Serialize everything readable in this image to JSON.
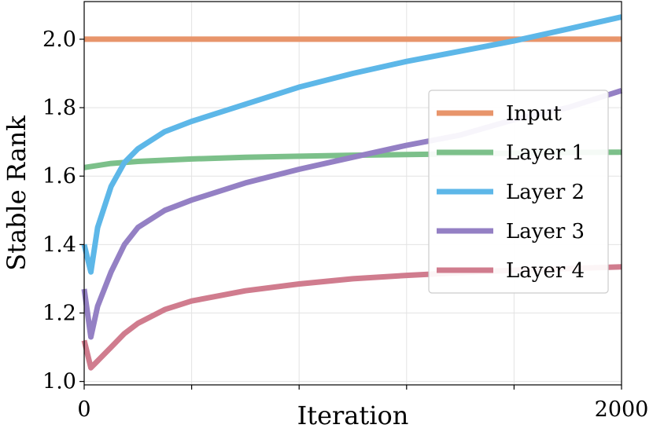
{
  "chart_data": {
    "type": "line",
    "title": "",
    "xlabel": "Iteration",
    "ylabel": "Stable Rank",
    "xlim": [
      0,
      2000
    ],
    "ylim": [
      0.99,
      2.11
    ],
    "x_ticks": [
      0,
      400,
      800,
      1200,
      1600,
      2000
    ],
    "x_tick_labels": [
      "0",
      "",
      "",
      "",
      "",
      "2000"
    ],
    "y_ticks": [
      1.0,
      1.2,
      1.4,
      1.6,
      1.8,
      2.0
    ],
    "y_tick_labels": [
      "1.0",
      "1.2",
      "1.4",
      "1.6",
      "1.8",
      "2.0"
    ],
    "grid": true,
    "legend_position": "right",
    "series": [
      {
        "name": "Input",
        "color": "#E8956B",
        "x": [
          0,
          2000
        ],
        "y": [
          2.0,
          2.0
        ]
      },
      {
        "name": "Layer 1",
        "color": "#7CC08A",
        "x": [
          0,
          100,
          200,
          400,
          600,
          800,
          1000,
          1200,
          1400,
          1600,
          1800,
          2000
        ],
        "y": [
          1.625,
          1.637,
          1.643,
          1.65,
          1.655,
          1.658,
          1.661,
          1.663,
          1.665,
          1.667,
          1.669,
          1.67
        ]
      },
      {
        "name": "Layer 2",
        "color": "#5DB7E8",
        "x": [
          0,
          25,
          50,
          100,
          150,
          200,
          300,
          400,
          500,
          600,
          800,
          1000,
          1200,
          1400,
          1600,
          1800,
          2000
        ],
        "y": [
          1.4,
          1.32,
          1.45,
          1.57,
          1.64,
          1.68,
          1.73,
          1.76,
          1.785,
          1.81,
          1.86,
          1.9,
          1.935,
          1.965,
          1.995,
          2.03,
          2.065
        ]
      },
      {
        "name": "Layer 3",
        "color": "#9480C4",
        "x": [
          0,
          25,
          50,
          100,
          150,
          200,
          300,
          400,
          500,
          600,
          800,
          1000,
          1200,
          1400,
          1600,
          1800,
          2000
        ],
        "y": [
          1.27,
          1.13,
          1.22,
          1.32,
          1.4,
          1.45,
          1.5,
          1.53,
          1.555,
          1.58,
          1.62,
          1.655,
          1.69,
          1.72,
          1.765,
          1.8,
          1.85
        ]
      },
      {
        "name": "Layer 4",
        "color": "#D07C8E",
        "x": [
          0,
          25,
          50,
          100,
          150,
          200,
          300,
          400,
          500,
          600,
          800,
          1000,
          1200,
          1400,
          1600,
          1800,
          2000
        ],
        "y": [
          1.12,
          1.04,
          1.06,
          1.1,
          1.14,
          1.17,
          1.21,
          1.235,
          1.25,
          1.265,
          1.285,
          1.3,
          1.31,
          1.318,
          1.325,
          1.33,
          1.335
        ]
      }
    ]
  }
}
